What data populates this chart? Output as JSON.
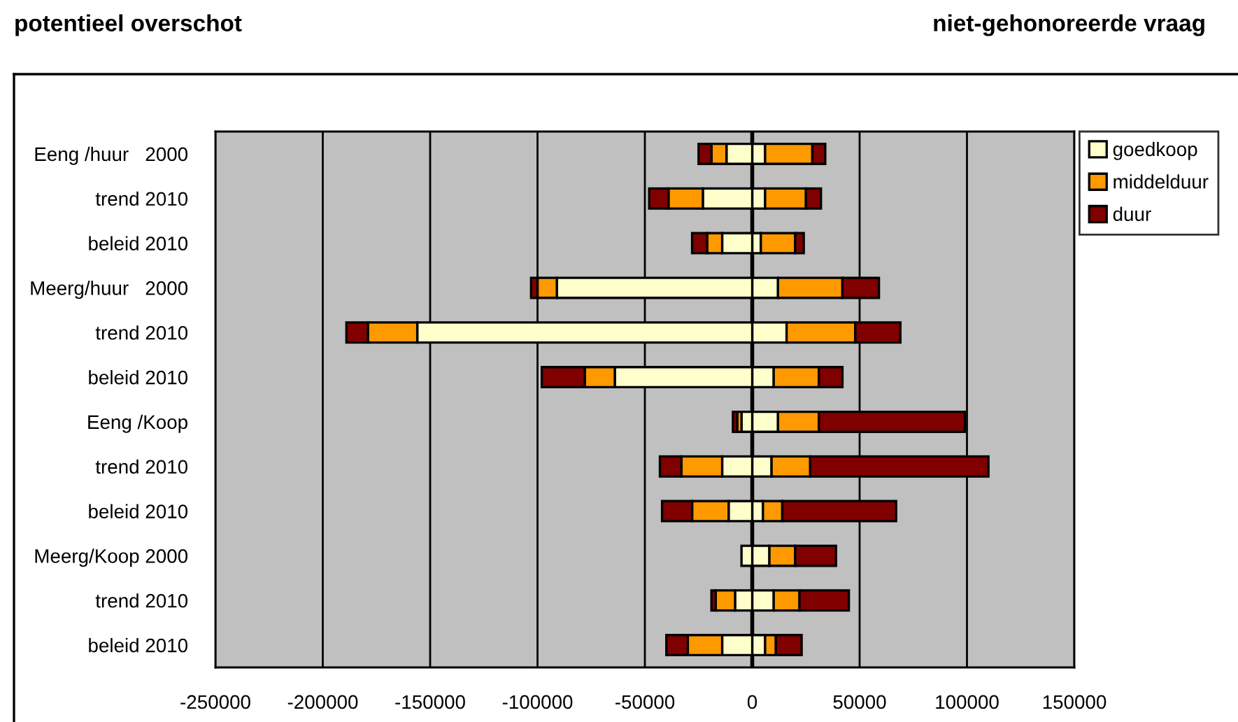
{
  "chart_data": {
    "type": "bar",
    "orientation": "horizontal",
    "stacked": true,
    "annotations": [
      "potentieel overschot",
      "niet-gehonoreerde vraag"
    ],
    "categories": [
      "Eeng /huur   2000",
      "trend 2010",
      "beleid 2010",
      "Meerg/huur   2000",
      "trend 2010",
      "beleid 2010",
      "Eeng /Koop",
      "trend 2010",
      "beleid 2010",
      "Meerg/Koop 2000",
      "trend 2010",
      "beleid 2010"
    ],
    "series": [
      {
        "name": "goedkoop",
        "color": "#ffffcc",
        "values": [
          6000,
          6000,
          4000,
          12000,
          16000,
          10000,
          12000,
          9000,
          5000,
          8000,
          10000,
          6000
        ]
      },
      {
        "name": "middelduur",
        "color": "#ff9900",
        "values": [
          22000,
          19000,
          16000,
          30000,
          32000,
          21000,
          19000,
          18000,
          9000,
          12000,
          12000,
          5000
        ]
      },
      {
        "name": "duur",
        "color": "#800000",
        "values": [
          6000,
          7000,
          4000,
          17000,
          21000,
          11000,
          68000,
          83000,
          53000,
          19000,
          23000,
          12000
        ]
      },
      {
        "color": "#ffffcc",
        "values": [
          -12000,
          -23000,
          -14000,
          -91000,
          -156000,
          -64000,
          -5000,
          -14000,
          -11000,
          -5000,
          -8000,
          -14000
        ]
      },
      {
        "color": "#ff9900",
        "values": [
          -7000,
          -16000,
          -7000,
          -9000,
          -23000,
          -14000,
          -2000,
          -19000,
          -17000,
          null,
          -9000,
          -16000
        ]
      },
      {
        "color": "#800000",
        "values": [
          -6000,
          -9000,
          -7000,
          -3000,
          -10000,
          -20000,
          -2000,
          -10000,
          -14000,
          null,
          -2000,
          -10000
        ]
      }
    ],
    "xlim": [
      -250000,
      150000
    ],
    "xticks": [
      -250000,
      -200000,
      -150000,
      -100000,
      -50000,
      0,
      50000,
      100000,
      150000
    ],
    "grid": "x",
    "legend": "top right"
  }
}
